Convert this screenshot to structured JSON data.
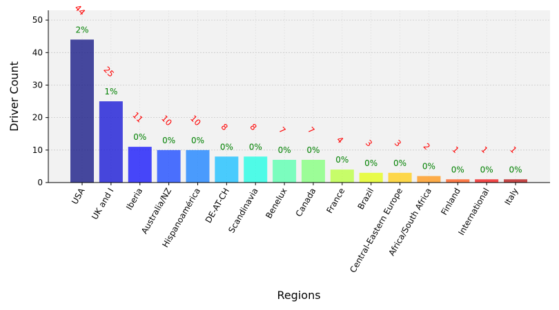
{
  "chart_data": {
    "type": "bar",
    "title": "",
    "xlabel": "Regions",
    "ylabel": "Driver Count",
    "ylim": [
      0,
      53
    ],
    "yticks": [
      0,
      10,
      20,
      30,
      40,
      50
    ],
    "grid": true,
    "legend": "none",
    "categories": [
      "USA",
      "UK and I",
      "Iberia",
      "Australia/NZ",
      "Hispanoamérica",
      "DE-AT-CH",
      "Scandinavia",
      "Benelux",
      "Canada",
      "France",
      "Brazil",
      "Central-Eastern Europe",
      "Africa/South Africa",
      "Finland",
      "International",
      "Italy"
    ],
    "values": [
      44,
      25,
      11,
      10,
      10,
      8,
      8,
      7,
      7,
      4,
      3,
      3,
      2,
      1,
      1,
      1
    ],
    "count_labels": [
      "44",
      "25",
      "11",
      "10",
      "10",
      "8",
      "8",
      "7",
      "7",
      "4",
      "3",
      "3",
      "2",
      "1",
      "1",
      "1"
    ],
    "percent_labels": [
      "2%",
      "1%",
      "0%",
      "0%",
      "0%",
      "0%",
      "0%",
      "0%",
      "0%",
      "0%",
      "0%",
      "0%",
      "0%",
      "0%",
      "0%",
      "0%"
    ],
    "bar_colors": [
      "#191c87",
      "#1a1ad6",
      "#1a1afa",
      "#1f4dff",
      "#1f84ff",
      "#1ec0ff",
      "#25fde4",
      "#5cffb0",
      "#86ff7f",
      "#bbff46",
      "#e5fd1e",
      "#ffcf1e",
      "#ff9a1e",
      "#ff5d1e",
      "#f11d1e",
      "#b91a1a"
    ],
    "count_label_color": "#ff0000",
    "percent_label_color": "#008000",
    "plot_background": "#f2f2f2"
  }
}
